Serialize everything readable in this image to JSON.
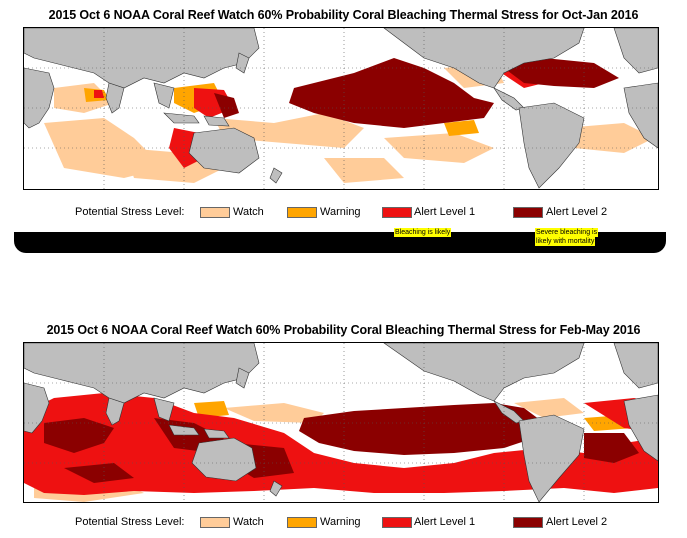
{
  "panels": [
    {
      "title": "2015 Oct 6 NOAA Coral Reef Watch 60% Probability Coral Bleaching Thermal Stress for Oct-Jan 2016"
    },
    {
      "title": "2015 Oct 6 NOAA Coral Reef Watch 60% Probability Coral Bleaching Thermal Stress for Feb-May 2016"
    }
  ],
  "legend": {
    "label": "Potential Stress Level:",
    "items": [
      {
        "name": "Watch",
        "color": "#FFCC99"
      },
      {
        "name": "Warning",
        "color": "#FFA500"
      },
      {
        "name": "Alert Level 1",
        "color": "#EE1111"
      },
      {
        "name": "Alert Level 2",
        "color": "#8B0000"
      }
    ]
  },
  "notes": {
    "alert1": "Bleaching is likely",
    "alert2_line1": "Severe bleaching is",
    "alert2_line2": "likely with mortality"
  },
  "colors": {
    "land": "#BEBEBE",
    "ocean": "#FFFFFF"
  }
}
